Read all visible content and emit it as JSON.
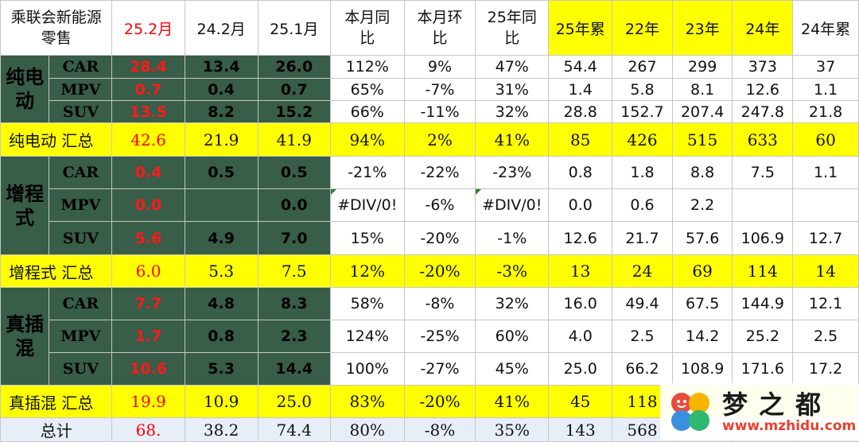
{
  "header": {
    "title": "乘联会新能源零售",
    "columns": [
      "25.2月",
      "24.2月",
      "25.1月",
      "本月同比",
      "本月环比",
      "25年同比",
      "25年累",
      "22年",
      "23年",
      "24年",
      "24年累"
    ]
  },
  "bev": {
    "label": "纯电动",
    "rows": [
      {
        "type": "CAR",
        "v": [
          "28.4",
          "13.4",
          "26.0",
          "112%",
          "9%",
          "47%",
          "54.4",
          "267",
          "299",
          "373",
          "37"
        ]
      },
      {
        "type": "MPV",
        "v": [
          "0.7",
          "0.4",
          "0.7",
          "65%",
          "-7%",
          "31%",
          "1.4",
          "5.8",
          "8.1",
          "12.6",
          "1.1"
        ]
      },
      {
        "type": "SUV",
        "v": [
          "13.5",
          "8.2",
          "15.2",
          "66%",
          "-11%",
          "32%",
          "28.8",
          "152.7",
          "207.4",
          "247.8",
          "21.8"
        ]
      }
    ],
    "summary_label": "纯电动 汇总",
    "summary": [
      "42.6",
      "21.9",
      "41.9",
      "94%",
      "2%",
      "41%",
      "85",
      "426",
      "515",
      "633",
      "60"
    ]
  },
  "erev": {
    "label": "增程式",
    "rows": [
      {
        "type": "CAR",
        "v": [
          "0.4",
          "0.5",
          "0.5",
          "-21%",
          "-22%",
          "-23%",
          "0.8",
          "1.8",
          "8.8",
          "7.5",
          "1.1"
        ]
      },
      {
        "type": "MPV",
        "v": [
          "0.0",
          "",
          "0.0",
          "#DIV/0!",
          "-6%",
          "#DIV/0!",
          "0.0",
          "0.6",
          "2.2",
          "",
          ""
        ]
      },
      {
        "type": "SUV",
        "v": [
          "5.6",
          "4.9",
          "7.0",
          "15%",
          "-20%",
          "-1%",
          "12.6",
          "21.7",
          "57.6",
          "106.9",
          "12.7"
        ]
      }
    ],
    "summary_label": "增程式 汇总",
    "summary": [
      "6.0",
      "5.3",
      "7.5",
      "12%",
      "-20%",
      "-3%",
      "13",
      "24",
      "69",
      "114",
      "14"
    ]
  },
  "phev": {
    "label": "真插混",
    "rows": [
      {
        "type": "CAR",
        "v": [
          "7.7",
          "4.8",
          "8.3",
          "58%",
          "-8%",
          "32%",
          "16.0",
          "49.4",
          "67.5",
          "144.9",
          "12.1"
        ]
      },
      {
        "type": "MPV",
        "v": [
          "1.7",
          "0.8",
          "2.3",
          "124%",
          "-25%",
          "60%",
          "4.0",
          "2.5",
          "14.2",
          "25.2",
          "2.5"
        ]
      },
      {
        "type": "SUV",
        "v": [
          "10.6",
          "5.3",
          "14.4",
          "100%",
          "-27%",
          "45%",
          "25.0",
          "66.2",
          "108.9",
          "171.6",
          "17.2"
        ]
      }
    ],
    "summary_label": "真插混 汇总",
    "summary": [
      "19.9",
      "10.9",
      "25.0",
      "83%",
      "-20%",
      "41%",
      "45",
      "118",
      "",
      "",
      ""
    ]
  },
  "total": {
    "label": "总计",
    "values": [
      "68.",
      "38.2",
      "74.4",
      "80%",
      "-8%",
      "35%",
      "143",
      "568",
      "",
      "",
      ""
    ]
  },
  "watermark": {
    "title": "梦之都",
    "url": "www.mzhidu.com"
  },
  "colors": {
    "highlight": "#ffff00",
    "category_bg": "#385d48",
    "accent_red": "#ff0000",
    "total_bg": "#e8eef8"
  }
}
